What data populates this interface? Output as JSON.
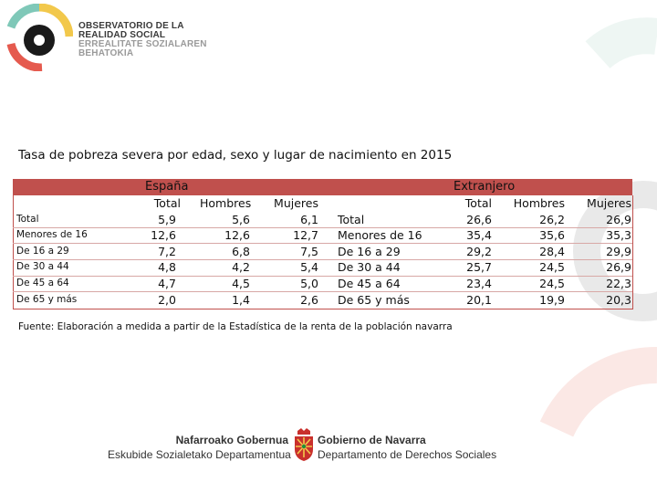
{
  "header": {
    "org_lines": [
      "OBSERVATORIO DE LA",
      "REALIDAD SOCIAL",
      "ERREALITATE SOZIALAREN",
      "BEHATOKIA"
    ]
  },
  "title": "Tasa de pobreza severa por edad, sexo y lugar de nacimiento en 2015",
  "table": {
    "group_spain": "España",
    "group_foreign": "Extranjero",
    "col_headers": [
      "Total",
      "Hombres",
      "Mujeres"
    ],
    "rows_spain": [
      {
        "label": "Total",
        "total": "5,9",
        "men": "5,6",
        "women": "6,1"
      },
      {
        "label": "Menores de 16",
        "total": "12,6",
        "men": "12,6",
        "women": "12,7"
      },
      {
        "label": "De 16 a 29",
        "total": "7,2",
        "men": "6,8",
        "women": "7,5"
      },
      {
        "label": "De 30 a 44",
        "total": "4,8",
        "men": "4,2",
        "women": "5,4"
      },
      {
        "label": "De 45 a 64",
        "total": "4,7",
        "men": "4,5",
        "women": "5,0"
      },
      {
        "label": "De 65 y más",
        "total": "2,0",
        "men": "1,4",
        "women": "2,6"
      }
    ],
    "rows_foreign": [
      {
        "label": "Total",
        "total": "26,6",
        "men": "26,2",
        "women": "26,9"
      },
      {
        "label": "Menores de 16",
        "total": "35,4",
        "men": "35,6",
        "women": "35,3"
      },
      {
        "label": "De 16 a 29",
        "total": "29,2",
        "men": "28,4",
        "women": "29,9"
      },
      {
        "label": "De 30 a 44",
        "total": "25,7",
        "men": "24,5",
        "women": "26,9"
      },
      {
        "label": "De 45 a 64",
        "total": "23,4",
        "men": "24,5",
        "women": "22,3"
      },
      {
        "label": "De 65 y más",
        "total": "20,1",
        "men": "19,9",
        "women": "20,3"
      }
    ]
  },
  "source": "Fuente: Elaboración a medida a partir de la Estadística de la renta de la población navarra",
  "footer": {
    "left_line1": "Nafarroako Gobernua",
    "left_line2": "Eskubide Sozialetako Departamentua",
    "right_line1": "Gobierno de Navarra",
    "right_line2": "Departamento de Derechos Sociales"
  },
  "colors": {
    "band": "#c0504d",
    "logo_teal": "#7fc8b8",
    "logo_yellow": "#f2c84b",
    "logo_red": "#e55a4e"
  }
}
